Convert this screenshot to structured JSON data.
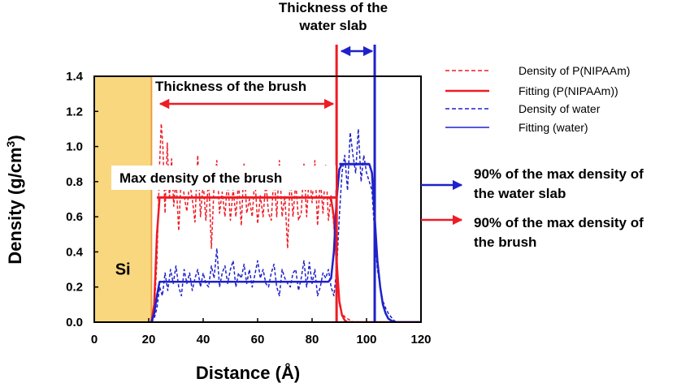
{
  "chart_data": {
    "type": "line",
    "xlabel": "Distance (Å)",
    "ylabel": "Density (g/cm",
    "ylabel_sup": "3",
    "ylabel_end": ")",
    "xlim": [
      0,
      120
    ],
    "ylim": [
      0,
      1.4
    ],
    "x_ticks": [
      0,
      20,
      40,
      60,
      80,
      100,
      120
    ],
    "y_ticks": [
      0.0,
      0.2,
      0.4,
      0.6,
      0.8,
      1.0,
      1.2,
      1.4
    ],
    "y_tick_labels": [
      "0.0",
      "0.2",
      "0.4",
      "0.6",
      "0.8",
      "1.0",
      "1.2",
      "1.4"
    ],
    "grid": false,
    "legend_position": "right",
    "colors": {
      "polymer": "#ee1c25",
      "water": "#1f22c8",
      "silicon": "#f9d77e",
      "silicon_edge": "#e8a040"
    },
    "si_region": {
      "label": "Si",
      "x_range": [
        0,
        21
      ]
    },
    "series": [
      {
        "name": "Density of P(NIPAAm)",
        "color": "#ee1c25",
        "style": "dashed",
        "x": [
          21,
          22,
          23,
          24,
          24.6,
          25.2,
          26,
          26.8,
          27.6,
          28.4,
          29.2,
          30,
          31,
          32,
          33,
          34,
          35,
          36,
          37,
          38,
          39,
          40,
          41,
          42,
          43,
          44,
          45,
          46,
          47,
          48,
          49,
          50,
          51,
          52,
          53,
          54,
          55,
          56,
          57,
          58,
          59,
          60,
          61,
          62,
          63,
          64,
          65,
          66,
          67,
          68,
          69,
          70,
          71,
          72,
          73,
          74,
          75,
          76,
          77,
          78,
          79,
          80,
          81,
          82,
          83,
          84,
          85,
          86,
          87,
          88,
          89,
          90,
          91,
          92,
          93,
          94,
          95,
          96
        ],
        "y": [
          0.0,
          0.05,
          0.35,
          0.9,
          1.13,
          1.0,
          0.62,
          1.02,
          0.7,
          0.93,
          0.66,
          0.82,
          0.52,
          0.86,
          0.72,
          0.63,
          0.8,
          0.7,
          0.57,
          0.95,
          0.6,
          0.8,
          0.58,
          0.83,
          0.42,
          0.78,
          0.92,
          0.62,
          0.74,
          0.6,
          0.82,
          0.58,
          0.76,
          0.6,
          0.8,
          0.55,
          0.9,
          0.62,
          0.7,
          0.6,
          0.82,
          0.56,
          0.72,
          0.6,
          0.8,
          0.62,
          0.58,
          0.85,
          0.6,
          0.92,
          0.6,
          0.72,
          0.42,
          0.85,
          0.6,
          0.8,
          0.58,
          0.62,
          0.9,
          0.6,
          0.85,
          0.68,
          0.92,
          0.55,
          0.82,
          0.62,
          0.9,
          0.58,
          0.72,
          0.55,
          0.3,
          0.1,
          0.05,
          0.03,
          0.02,
          0.01,
          0.0,
          0.0
        ]
      },
      {
        "name": "Fitting (P(NIPAAm))",
        "color": "#ee1c25",
        "style": "solid",
        "x": [
          21,
          22,
          23,
          24,
          86,
          87,
          88,
          89,
          90,
          91,
          92,
          93,
          94,
          95,
          120
        ],
        "y": [
          0,
          0.1,
          0.5,
          0.71,
          0.71,
          0.7,
          0.6,
          0.35,
          0.12,
          0.04,
          0.01,
          0,
          0,
          0,
          0
        ]
      },
      {
        "name": "Density of water",
        "color": "#1f22c8",
        "style": "dashed",
        "x": [
          21,
          22,
          23,
          24,
          25,
          26,
          27,
          28,
          29,
          30,
          31,
          32,
          33,
          34,
          35,
          36,
          37,
          38,
          39,
          40,
          41,
          42,
          43,
          44,
          45,
          46,
          47,
          48,
          49,
          50,
          51,
          52,
          53,
          54,
          55,
          56,
          57,
          58,
          59,
          60,
          61,
          62,
          63,
          64,
          65,
          66,
          67,
          68,
          69,
          70,
          71,
          72,
          73,
          74,
          75,
          76,
          77,
          78,
          79,
          80,
          81,
          82,
          83,
          84,
          85,
          86,
          87,
          88,
          89,
          90,
          91,
          92,
          93,
          94,
          95,
          96,
          97,
          98,
          99,
          100,
          101,
          102,
          103,
          104,
          105,
          106,
          107,
          108,
          109,
          110,
          111
        ],
        "y": [
          0.0,
          0.02,
          0.08,
          0.2,
          0.15,
          0.28,
          0.18,
          0.3,
          0.22,
          0.32,
          0.2,
          0.15,
          0.3,
          0.22,
          0.28,
          0.18,
          0.25,
          0.3,
          0.2,
          0.28,
          0.22,
          0.2,
          0.32,
          0.25,
          0.42,
          0.2,
          0.28,
          0.32,
          0.22,
          0.3,
          0.35,
          0.2,
          0.28,
          0.25,
          0.33,
          0.22,
          0.3,
          0.2,
          0.27,
          0.35,
          0.25,
          0.3,
          0.22,
          0.2,
          0.28,
          0.33,
          0.2,
          0.15,
          0.3,
          0.25,
          0.22,
          0.2,
          0.28,
          0.3,
          0.18,
          0.25,
          0.35,
          0.2,
          0.34,
          0.22,
          0.3,
          0.15,
          0.2,
          0.28,
          0.25,
          0.3,
          0.2,
          0.15,
          0.3,
          0.6,
          0.85,
          0.95,
          0.75,
          1.08,
          0.95,
          0.85,
          1.1,
          0.8,
          0.95,
          0.85,
          0.8,
          0.75,
          0.5,
          0.3,
          0.2,
          0.12,
          0.08,
          0.05,
          0.03,
          0.01,
          0.0
        ]
      },
      {
        "name": "Fitting (water)",
        "color": "#1f22c8",
        "style": "solid",
        "x": [
          21,
          22,
          23,
          24,
          86,
          87,
          88,
          89,
          90,
          91,
          101,
          102,
          103,
          104,
          105,
          106,
          107,
          108,
          110,
          120
        ],
        "y": [
          0,
          0.05,
          0.15,
          0.23,
          0.23,
          0.25,
          0.4,
          0.7,
          0.87,
          0.9,
          0.9,
          0.85,
          0.6,
          0.35,
          0.2,
          0.1,
          0.05,
          0.02,
          0,
          0
        ]
      }
    ],
    "vertical_lines": [
      {
        "x": 89,
        "color": "#ee1c25"
      },
      {
        "x": 103,
        "color": "#1f22c8"
      }
    ],
    "horizontal_markers": [
      {
        "y": 0.71,
        "x_range": [
          23,
          89
        ],
        "color": "#ee1c25"
      },
      {
        "y": 0.9,
        "x_range": [
          90,
          101
        ],
        "color": "#1f22c8"
      }
    ],
    "annotations": {
      "water_slab_thickness": "Thickness of the water slab",
      "brush_thickness": "Thickness of the brush",
      "max_density_brush": "Max density of the brush",
      "water_90": "90% of the max density of the water slab",
      "brush_90": "90% of the max density of the brush"
    }
  }
}
